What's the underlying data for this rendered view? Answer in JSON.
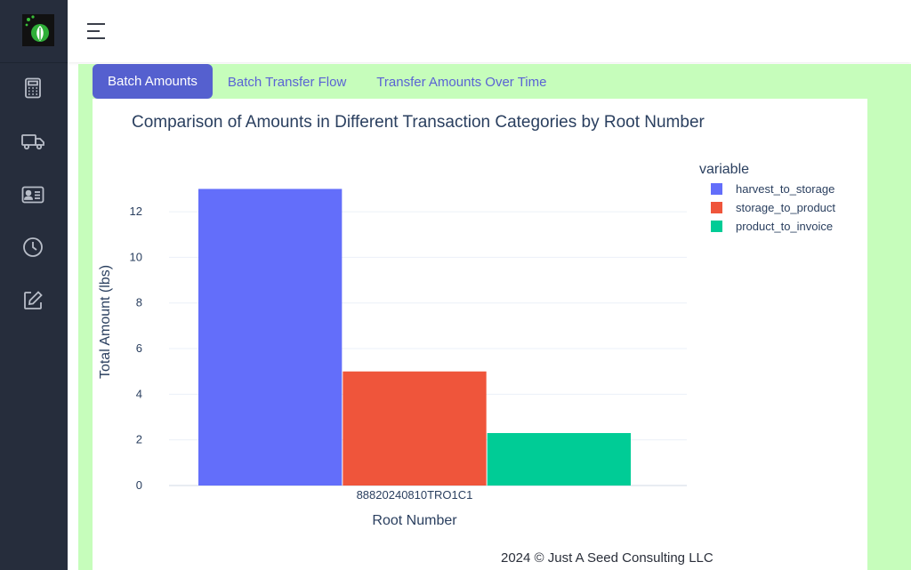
{
  "sidebar": {
    "logo": "leaf-logo",
    "items": [
      {
        "icon": "calculator-icon"
      },
      {
        "icon": "truck-icon"
      },
      {
        "icon": "id-card-icon"
      },
      {
        "icon": "clock-icon"
      },
      {
        "icon": "edit-icon"
      }
    ]
  },
  "header": {
    "menu_icon": "hamburger-icon"
  },
  "tabs": [
    {
      "label": "Batch Amounts",
      "active": true
    },
    {
      "label": "Batch Transfer Flow",
      "active": false
    },
    {
      "label": "Transfer Amounts Over Time",
      "active": false
    }
  ],
  "chart_data": {
    "type": "bar",
    "title": "Comparison of Amounts in Different Transaction Categories by Root Number",
    "xlabel": "Root Number",
    "ylabel": "Total Amount (lbs)",
    "categories": [
      "88820240810TRO1C1"
    ],
    "legend_title": "variable",
    "legend_position": "top-right",
    "series": [
      {
        "name": "harvest_to_storage",
        "values": [
          13
        ],
        "color": "#636efa"
      },
      {
        "name": "storage_to_product",
        "values": [
          5
        ],
        "color": "#ef553b"
      },
      {
        "name": "product_to_invoice",
        "values": [
          2.3
        ],
        "color": "#00cc96"
      }
    ],
    "yticks": [
      "0",
      "2",
      "4",
      "6",
      "8",
      "10",
      "12"
    ],
    "ylim": [
      0,
      13.68
    ],
    "grid": true
  },
  "footer": {
    "text": "2024 © Just A Seed Consulting LLC"
  },
  "colors": {
    "sidebar": "#262d3c",
    "content_bg": "#c6fdbb",
    "tab_active": "#5560cf"
  }
}
